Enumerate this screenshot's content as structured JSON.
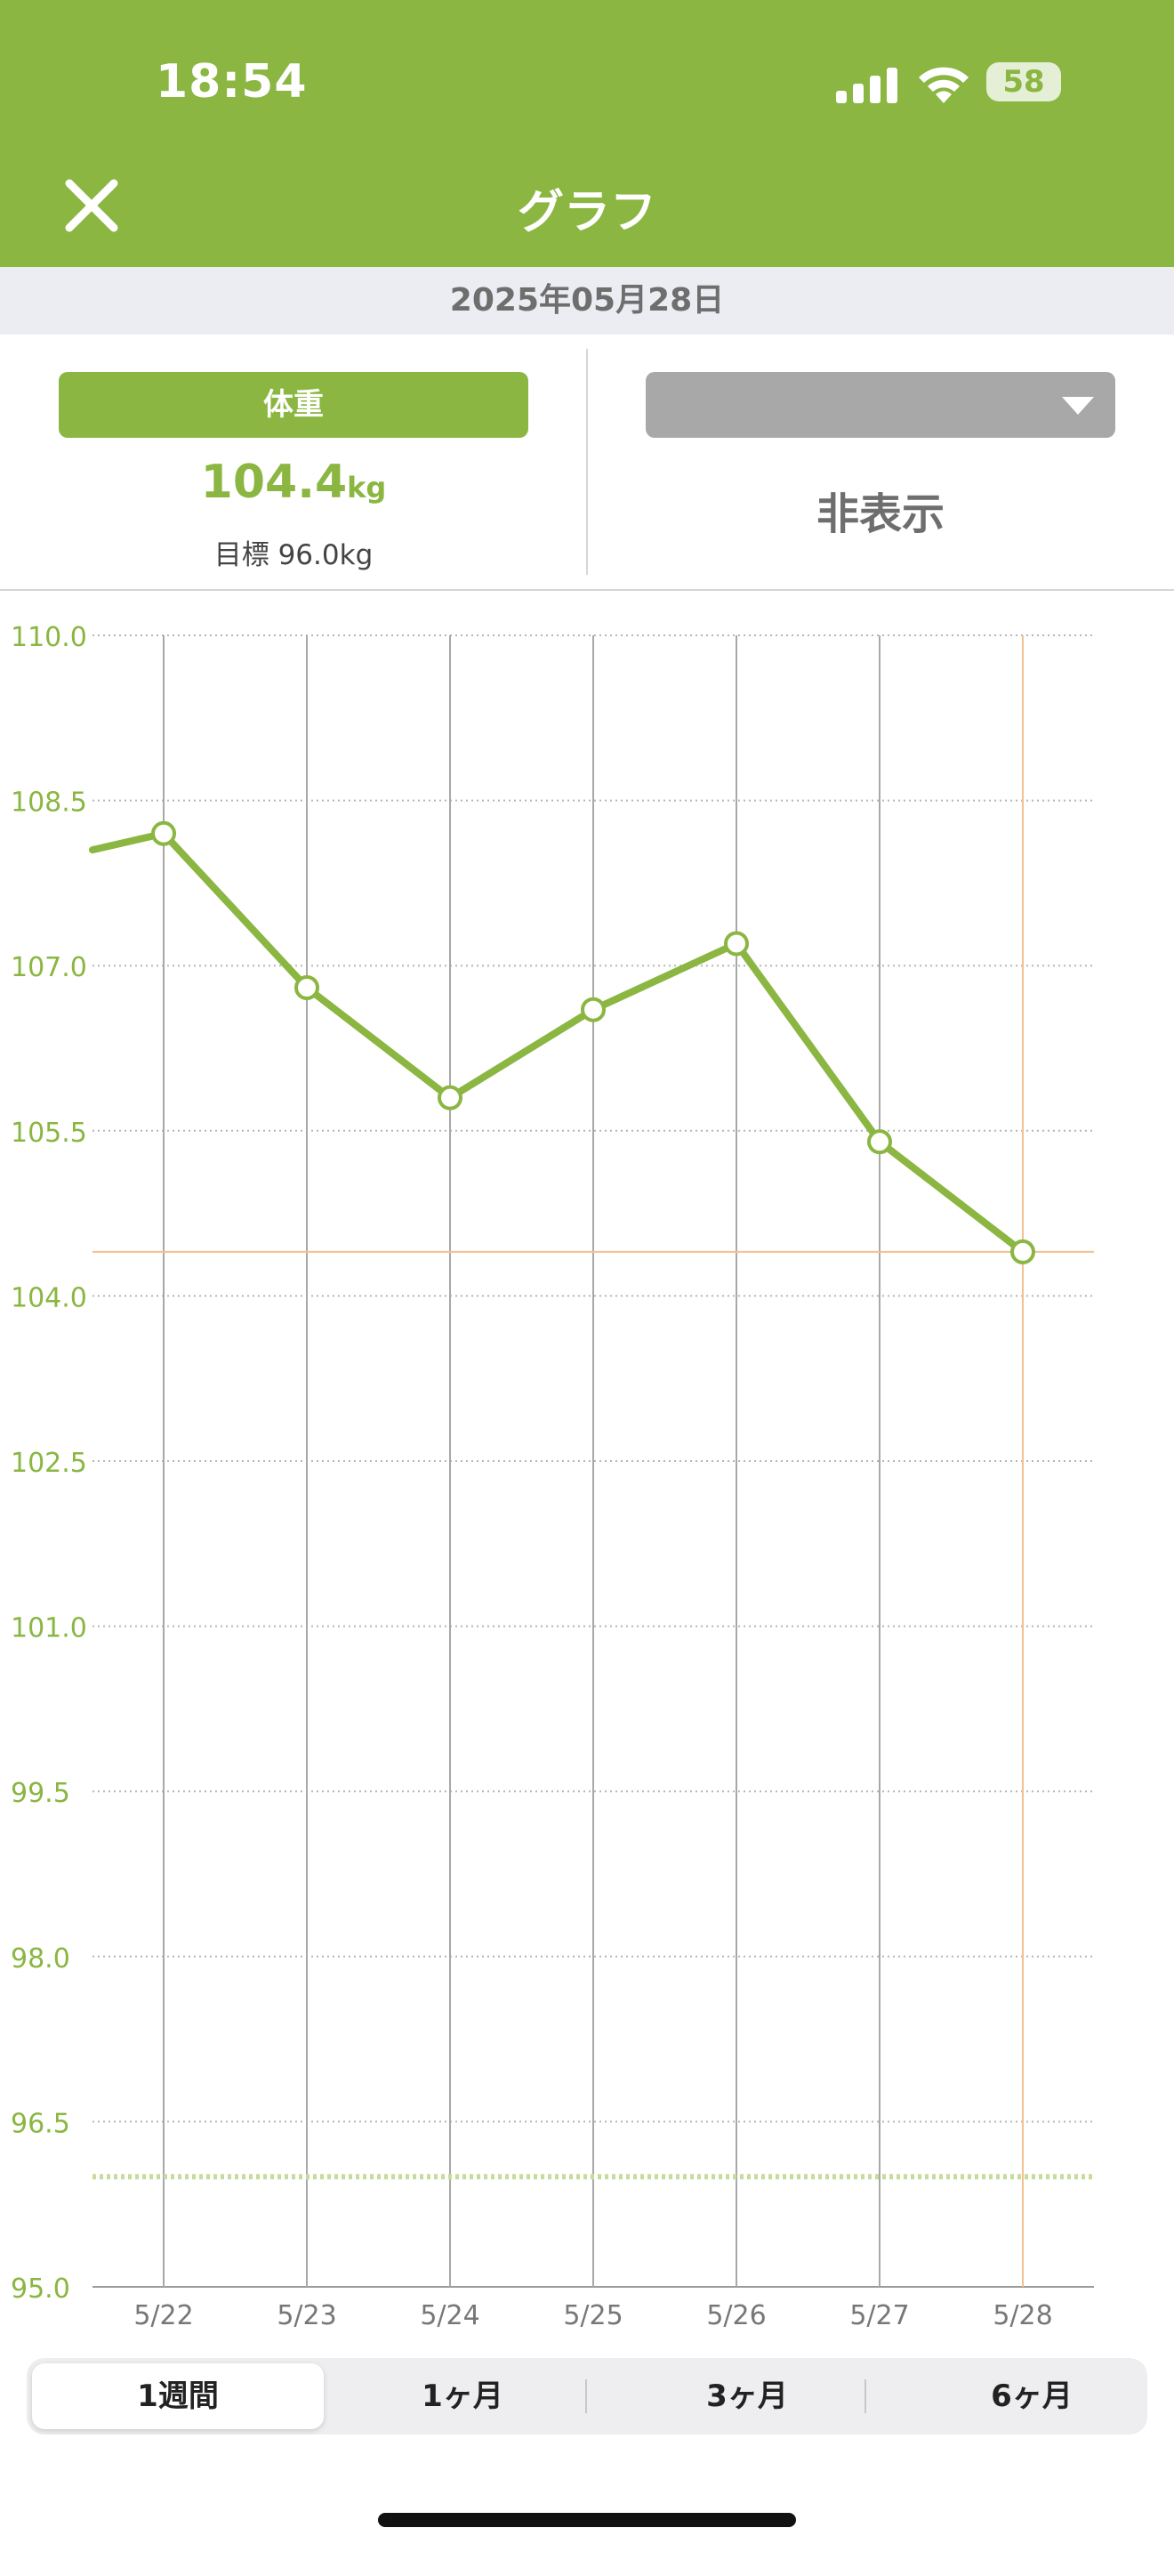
{
  "status_bar": {
    "time": "18:54",
    "battery": "58"
  },
  "header": {
    "title": "グラフ"
  },
  "date_bar": {
    "date": "2025年05月28日"
  },
  "metric_left": {
    "label": "体重",
    "value": "104.4",
    "unit": "kg",
    "goal": "目標 96.0kg"
  },
  "metric_right": {
    "label": "",
    "value": "非表示"
  },
  "chart_data": {
    "type": "line",
    "categories": [
      "5/22",
      "5/23",
      "5/24",
      "5/25",
      "5/26",
      "5/27",
      "5/28"
    ],
    "series": [
      {
        "values": [
          108.2,
          106.8,
          105.8,
          106.6,
          107.2,
          105.4,
          104.4
        ]
      }
    ],
    "lead_in_value": 107.9,
    "ylim": [
      95.0,
      110.0
    ],
    "yticks": [
      "110.0",
      "108.5",
      "107.0",
      "105.5",
      "104.0",
      "102.5",
      "101.0",
      "99.5",
      "98.0",
      "96.5",
      "95.0"
    ],
    "goal_value": 96.0,
    "selected_category": "5/28",
    "selected_value": 104.4,
    "grid": true,
    "colors": {
      "line": "#8ab641",
      "axis_label": "#8ab641",
      "highlight": "#f4c08f",
      "goal": "#c5dc9a"
    }
  },
  "range_tabs": {
    "items": [
      "1週間",
      "1ヶ月",
      "3ヶ月",
      "6ヶ月"
    ],
    "selected": "1週間"
  }
}
